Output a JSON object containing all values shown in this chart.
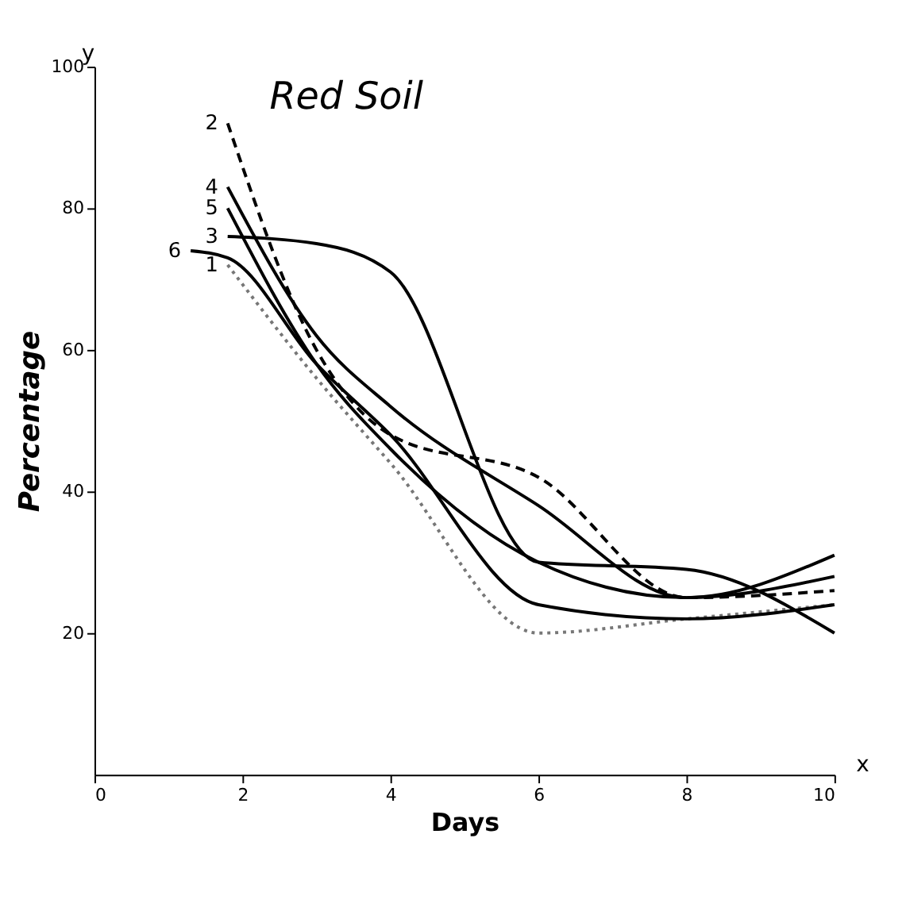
{
  "chart_data": {
    "type": "line",
    "title": "Red Soil",
    "xlabel": "Days",
    "ylabel": "Percentage",
    "annotations": [
      "y",
      "x"
    ],
    "xlim": [
      0,
      10
    ],
    "xticks": [
      0,
      2,
      4,
      6,
      8,
      10
    ],
    "ylim": [
      0,
      100
    ],
    "yticks": [
      20,
      40,
      60,
      80,
      100
    ],
    "grid": false,
    "series": [
      {
        "name": "1",
        "color": "#777777",
        "line_style": "dotted",
        "x": [
          1.8,
          3,
          4,
          6,
          8,
          10
        ],
        "values": [
          72,
          56,
          44,
          20,
          22,
          24
        ]
      },
      {
        "name": "2",
        "color": "#000000",
        "line_style": "dashed",
        "x": [
          1.8,
          3,
          4,
          6,
          8,
          10
        ],
        "values": [
          92,
          60,
          48,
          42,
          25,
          26
        ]
      },
      {
        "name": "3",
        "color": "#000000",
        "line_style": "solid",
        "x": [
          1.8,
          3,
          4,
          6,
          8,
          10
        ],
        "values": [
          76,
          75,
          71,
          30,
          29,
          20
        ]
      },
      {
        "name": "4",
        "color": "#000000",
        "line_style": "solid",
        "x": [
          1.8,
          3,
          4,
          6,
          8,
          10
        ],
        "values": [
          83,
          62,
          52,
          38,
          25,
          31
        ]
      },
      {
        "name": "5",
        "color": "#000000",
        "line_style": "solid",
        "x": [
          1.8,
          3,
          4,
          6,
          8,
          10
        ],
        "values": [
          80,
          58,
          46,
          30,
          25,
          28
        ]
      },
      {
        "name": "6",
        "color": "#000000",
        "line_style": "solid",
        "x": [
          1.3,
          1.8,
          3,
          4,
          6,
          8,
          10
        ],
        "values": [
          74,
          73,
          58,
          48,
          24,
          22,
          24
        ]
      }
    ]
  }
}
